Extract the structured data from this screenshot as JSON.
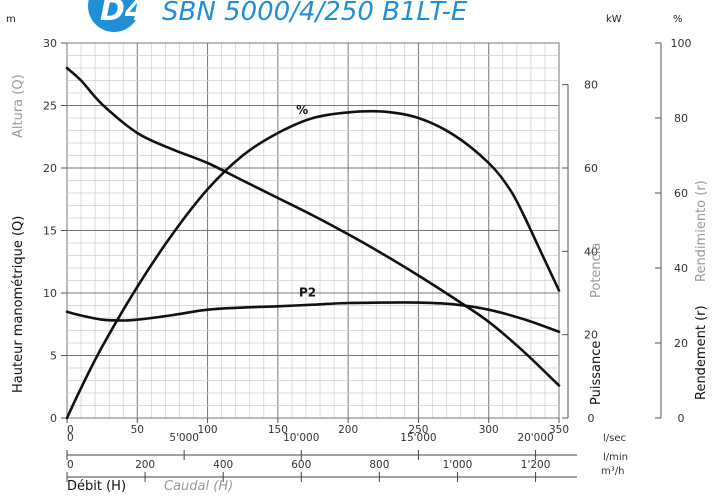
{
  "header": {
    "badge": "D4",
    "model": "SBN 5000/4/250 B1LT-E",
    "left_unit": "m",
    "right_units": [
      "kW",
      "%"
    ]
  },
  "chart_data": {
    "type": "line",
    "title": "SBN 5000/4/250 B1LT-E",
    "x_axes": [
      {
        "unit": "l/sec",
        "range": [
          0,
          350
        ],
        "ticks": [
          "0",
          "50",
          "100",
          "150",
          "200",
          "250",
          "300",
          "350"
        ],
        "tick_values": [
          0,
          50,
          100,
          150,
          200,
          250,
          300,
          350
        ]
      },
      {
        "unit": "l/min",
        "range": [
          0,
          21000
        ],
        "ticks": [
          "0",
          "5'000",
          "10'000",
          "15'000",
          "20'000"
        ],
        "tick_values": [
          0,
          5000,
          10000,
          15000,
          20000
        ]
      },
      {
        "unit": "m³/h",
        "range": [
          0,
          1260
        ],
        "ticks": [
          "0",
          "200",
          "400",
          "600",
          "800",
          "1'000",
          "1'200"
        ],
        "tick_values": [
          0,
          200,
          400,
          600,
          800,
          1000,
          1200
        ]
      }
    ],
    "xlabel": "Débit (H)",
    "xlabel_alt": "Caudal (H)",
    "y_head": {
      "unit": "m",
      "range": [
        0,
        30
      ],
      "ticks": [
        "0",
        "5",
        "10",
        "15",
        "20",
        "25",
        "30"
      ],
      "tick_values": [
        0,
        5,
        10,
        15,
        20,
        25,
        30
      ],
      "label": "Hauteur manométrique (Q)",
      "label_alt": "Altura (Q)"
    },
    "y_power": {
      "unit": "kW",
      "range": [
        0,
        90
      ],
      "ticks": [
        "0",
        "20",
        "40",
        "60",
        "80"
      ],
      "tick_values": [
        0,
        20,
        40,
        60,
        80
      ],
      "label": "Puissance",
      "label_alt": "Potencia"
    },
    "y_eff": {
      "unit": "%",
      "range": [
        0,
        100
      ],
      "ticks": [
        "0",
        "20",
        "40",
        "60",
        "80",
        "100"
      ],
      "tick_values": [
        0,
        20,
        40,
        60,
        80,
        100
      ],
      "label": "Rendement (r)",
      "label_alt": "Rendimiento (r)"
    },
    "grid": true,
    "series": [
      {
        "axis": "head",
        "x": [
          0,
          10,
          25,
          50,
          75,
          100,
          125,
          150,
          175,
          200,
          225,
          250,
          275,
          300,
          325,
          350
        ],
        "y": [
          28,
          27,
          25.1,
          22.8,
          21.5,
          20.4,
          19,
          17.6,
          16.2,
          14.7,
          13.1,
          11.4,
          9.6,
          7.7,
          5.3,
          2.6
        ]
      },
      {
        "name": "%",
        "axis": "eff",
        "x": [
          0,
          10,
          25,
          50,
          75,
          100,
          125,
          150,
          175,
          200,
          225,
          250,
          275,
          300,
          315,
          325,
          335,
          350
        ],
        "y": [
          0,
          8,
          19,
          35,
          49,
          61,
          70,
          76,
          80,
          81.5,
          81.7,
          80,
          75.5,
          68,
          61,
          54,
          46,
          34
        ]
      },
      {
        "name": "P2",
        "axis": "power",
        "x": [
          0,
          10,
          25,
          40,
          50,
          75,
          100,
          125,
          150,
          175,
          200,
          225,
          250,
          275,
          300,
          325,
          350
        ],
        "y": [
          25.5,
          24.6,
          23.6,
          23.4,
          23.6,
          24.7,
          26,
          26.5,
          26.8,
          27.2,
          27.6,
          27.7,
          27.7,
          27.3,
          26,
          23.7,
          20.7
        ]
      }
    ],
    "annotations": [
      {
        "text": "%",
        "series": "%",
        "x": 163,
        "y_value": 80
      },
      {
        "text": "P2",
        "series": "P2",
        "x": 165,
        "y_value": 28.7
      }
    ]
  }
}
